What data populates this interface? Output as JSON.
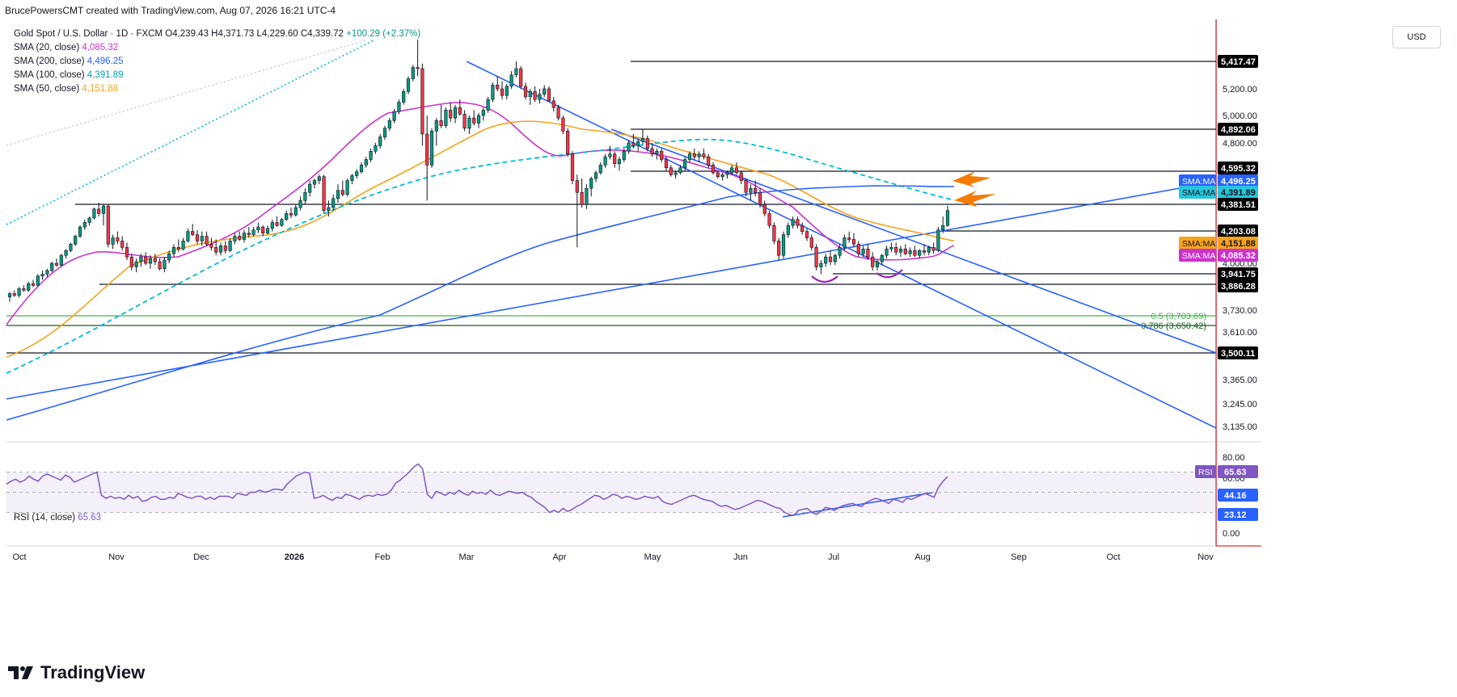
{
  "header": "BrucePowersCMT created with TradingView.com, Aug 07, 2026 16:21 UTC-4",
  "symbol": {
    "title": "Gold Spot / U.S. Dollar · 1D · FXCM",
    "open": "O4,239.43",
    "high": "H4,371.73",
    "low": "L4,229.60",
    "close": "C4,339.72",
    "change": "+100.29 (+2.37%)"
  },
  "indicators": [
    {
      "label": "SMA (20, close)",
      "value": "4,085.32",
      "color": "#cc33cc"
    },
    {
      "label": "SMA (200, close)",
      "value": "4,496.25",
      "color": "#2962ff"
    },
    {
      "label": "SMA (100, close)",
      "value": "4,391.89",
      "color": "#00bcd4"
    },
    {
      "label": "SMA (50, close)",
      "value": "4,151.88",
      "color": "#f7a21b"
    }
  ],
  "rsi_legend": {
    "label": "RSI (14, close)",
    "value": "65.63",
    "color": "#7e57c2"
  },
  "currency_button": "USD",
  "brand": "TradingView",
  "chart_data": {
    "type": "candlestick",
    "x_labels": [
      "Oct",
      "Nov",
      "Dec",
      "2026",
      "Feb",
      "Mar",
      "Apr",
      "May",
      "Jun",
      "Jul",
      "Aug",
      "Sep",
      "Oct",
      "Nov"
    ],
    "price_axis_ticks": [
      "5,200.00",
      "5,000.00",
      "4,800.00",
      "4,000.00",
      "3,730.00",
      "3,610.00",
      "3,365.00",
      "3,245.00",
      "3,135.00"
    ],
    "price_axis_labels": [
      {
        "text": "5,417.47",
        "bg": "#000000",
        "fg": "#ffffff"
      },
      {
        "text": "4,892.06",
        "bg": "#000000",
        "fg": "#ffffff"
      },
      {
        "text": "4,595.32",
        "bg": "#000000",
        "fg": "#ffffff"
      },
      {
        "text": "4,496.25",
        "tag": "SMA:MA",
        "bg": "#2962ff",
        "fg": "#ffffff"
      },
      {
        "text": "4,391.89",
        "tag": "SMA:MA",
        "bg": "#26c6da",
        "fg": "#131722"
      },
      {
        "text": "4,381.51",
        "bg": "#000000",
        "fg": "#ffffff"
      },
      {
        "text": "4,203.08",
        "bg": "#000000",
        "fg": "#ffffff"
      },
      {
        "text": "4,151.88",
        "tag": "SMA:MA",
        "bg": "#f7a21b",
        "fg": "#131722"
      },
      {
        "text": "4,085.32",
        "tag": "SMA:MA",
        "bg": "#cc33cc",
        "fg": "#ffffff"
      },
      {
        "text": "3,941.75",
        "bg": "#000000",
        "fg": "#ffffff"
      },
      {
        "text": "3,886.28",
        "bg": "#000000",
        "fg": "#ffffff"
      },
      {
        "text": "3,500.11",
        "bg": "#000000",
        "fg": "#ffffff"
      }
    ],
    "horizontal_levels": [
      5417.47,
      4892.06,
      4595.32,
      4381.51,
      4203.08,
      3941.75,
      3886.28,
      3500.11
    ],
    "fib_levels": [
      {
        "label": "0.5 (3,703.69)",
        "value": 3703.69,
        "color": "#4caf50"
      },
      {
        "label": "0.786 (3,650.42)",
        "value": 3650.42,
        "color": "#1b5e20"
      }
    ],
    "candles": [
      [
        3810,
        3840,
        3780,
        3830
      ],
      [
        3830,
        3850,
        3810,
        3820
      ],
      [
        3820,
        3870,
        3805,
        3860
      ],
      [
        3860,
        3880,
        3840,
        3850
      ],
      [
        3850,
        3900,
        3840,
        3890
      ],
      [
        3890,
        3910,
        3870,
        3880
      ],
      [
        3880,
        3940,
        3875,
        3930
      ],
      [
        3930,
        3960,
        3910,
        3940
      ],
      [
        3940,
        3970,
        3925,
        3960
      ],
      [
        3960,
        4010,
        3950,
        4000
      ],
      [
        4000,
        4030,
        3980,
        3990
      ],
      [
        3990,
        4060,
        3985,
        4050
      ],
      [
        4050,
        4090,
        4030,
        4080
      ],
      [
        4080,
        4130,
        4070,
        4120
      ],
      [
        4120,
        4180,
        4110,
        4170
      ],
      [
        4170,
        4240,
        4160,
        4230
      ],
      [
        4230,
        4280,
        4210,
        4260
      ],
      [
        4260,
        4300,
        4240,
        4290
      ],
      [
        4290,
        4360,
        4280,
        4350
      ],
      [
        4350,
        4390,
        4300,
        4320
      ],
      [
        4320,
        4380,
        4240,
        4370
      ],
      [
        4370,
        4380,
        4100,
        4120
      ],
      [
        4120,
        4180,
        4090,
        4160
      ],
      [
        4160,
        4200,
        4120,
        4140
      ],
      [
        4140,
        4170,
        4080,
        4100
      ],
      [
        4100,
        4130,
        4020,
        4040
      ],
      [
        4040,
        4060,
        3960,
        3980
      ],
      [
        3980,
        4030,
        3950,
        4010
      ],
      [
        4010,
        4060,
        3980,
        4040
      ],
      [
        4040,
        4070,
        3990,
        4000
      ],
      [
        4000,
        4050,
        3970,
        4030
      ],
      [
        4030,
        4060,
        3990,
        4010
      ],
      [
        4010,
        4030,
        3960,
        3970
      ],
      [
        3970,
        4040,
        3950,
        4020
      ],
      [
        4020,
        4080,
        4000,
        4060
      ],
      [
        4060,
        4120,
        4040,
        4100
      ],
      [
        4100,
        4150,
        4070,
        4090
      ],
      [
        4090,
        4160,
        4080,
        4140
      ],
      [
        4140,
        4220,
        4130,
        4200
      ],
      [
        4200,
        4250,
        4170,
        4180
      ],
      [
        4180,
        4210,
        4120,
        4140
      ],
      [
        4140,
        4200,
        4110,
        4170
      ],
      [
        4170,
        4200,
        4110,
        4120
      ],
      [
        4120,
        4160,
        4080,
        4100
      ],
      [
        4100,
        4150,
        4050,
        4070
      ],
      [
        4070,
        4130,
        4050,
        4110
      ],
      [
        4110,
        4140,
        4060,
        4080
      ],
      [
        4080,
        4160,
        4070,
        4140
      ],
      [
        4140,
        4190,
        4120,
        4170
      ],
      [
        4170,
        4200,
        4140,
        4150
      ],
      [
        4150,
        4210,
        4130,
        4190
      ],
      [
        4190,
        4230,
        4160,
        4180
      ],
      [
        4180,
        4230,
        4170,
        4210
      ],
      [
        4210,
        4260,
        4190,
        4230
      ],
      [
        4230,
        4240,
        4170,
        4190
      ],
      [
        4190,
        4240,
        4180,
        4220
      ],
      [
        4220,
        4280,
        4200,
        4260
      ],
      [
        4260,
        4300,
        4230,
        4240
      ],
      [
        4240,
        4290,
        4230,
        4280
      ],
      [
        4280,
        4340,
        4270,
        4320
      ],
      [
        4320,
        4360,
        4290,
        4310
      ],
      [
        4310,
        4380,
        4300,
        4360
      ],
      [
        4360,
        4420,
        4340,
        4400
      ],
      [
        4400,
        4460,
        4380,
        4440
      ],
      [
        4440,
        4500,
        4420,
        4480
      ],
      [
        4480,
        4520,
        4460,
        4500
      ],
      [
        4500,
        4560,
        4480,
        4540
      ],
      [
        4540,
        4560,
        4320,
        4340
      ],
      [
        4340,
        4400,
        4300,
        4360
      ],
      [
        4360,
        4430,
        4340,
        4410
      ],
      [
        4410,
        4480,
        4390,
        4450
      ],
      [
        4450,
        4500,
        4420,
        4430
      ],
      [
        4430,
        4520,
        4420,
        4500
      ],
      [
        4500,
        4570,
        4480,
        4550
      ],
      [
        4550,
        4610,
        4520,
        4590
      ],
      [
        4590,
        4660,
        4570,
        4640
      ],
      [
        4640,
        4700,
        4620,
        4680
      ],
      [
        4680,
        4760,
        4660,
        4740
      ],
      [
        4740,
        4800,
        4720,
        4780
      ],
      [
        4780,
        4860,
        4760,
        4840
      ],
      [
        4840,
        4920,
        4820,
        4900
      ],
      [
        4900,
        4980,
        4880,
        4960
      ],
      [
        4960,
        5050,
        4940,
        5030
      ],
      [
        5030,
        5120,
        5010,
        5100
      ],
      [
        5100,
        5200,
        5080,
        5180
      ],
      [
        5180,
        5300,
        5160,
        5280
      ],
      [
        5280,
        5390,
        5260,
        5370
      ],
      [
        5370,
        5590,
        5300,
        5360
      ],
      [
        5360,
        5400,
        4780,
        4860
      ],
      [
        4860,
        5000,
        4400,
        4640
      ],
      [
        4640,
        4900,
        4620,
        4880
      ],
      [
        4880,
        4980,
        4780,
        4960
      ],
      [
        4960,
        5080,
        4900,
        4920
      ],
      [
        4920,
        5060,
        4900,
        5040
      ],
      [
        5040,
        5100,
        4950,
        4980
      ],
      [
        4980,
        5080,
        4940,
        5060
      ],
      [
        5060,
        5120,
        5000,
        5010
      ],
      [
        5010,
        5040,
        4880,
        4900
      ],
      [
        4900,
        5000,
        4860,
        4980
      ],
      [
        4980,
        5040,
        4920,
        4940
      ],
      [
        4940,
        5020,
        4900,
        5000
      ],
      [
        5000,
        5060,
        4960,
        5040
      ],
      [
        5040,
        5140,
        5020,
        5120
      ],
      [
        5120,
        5250,
        5100,
        5230
      ],
      [
        5230,
        5300,
        5180,
        5200
      ],
      [
        5200,
        5260,
        5120,
        5150
      ],
      [
        5150,
        5240,
        5120,
        5220
      ],
      [
        5220,
        5340,
        5200,
        5310
      ],
      [
        5310,
        5417,
        5290,
        5360
      ],
      [
        5360,
        5380,
        5200,
        5220
      ],
      [
        5220,
        5250,
        5120,
        5140
      ],
      [
        5140,
        5200,
        5080,
        5180
      ],
      [
        5180,
        5220,
        5100,
        5120
      ],
      [
        5120,
        5200,
        5090,
        5160
      ],
      [
        5160,
        5230,
        5140,
        5200
      ],
      [
        5200,
        5220,
        5100,
        5110
      ],
      [
        5110,
        5140,
        5030,
        5060
      ],
      [
        5060,
        5080,
        4960,
        4980
      ],
      [
        4980,
        5000,
        4860,
        4880
      ],
      [
        4880,
        4900,
        4700,
        4720
      ],
      [
        4720,
        4740,
        4480,
        4500
      ],
      [
        4500,
        4560,
        4100,
        4440
      ],
      [
        4440,
        4520,
        4360,
        4380
      ],
      [
        4380,
        4480,
        4350,
        4460
      ],
      [
        4460,
        4540,
        4420,
        4520
      ],
      [
        4520,
        4600,
        4490,
        4580
      ],
      [
        4580,
        4660,
        4560,
        4640
      ],
      [
        4640,
        4720,
        4620,
        4700
      ],
      [
        4700,
        4780,
        4680,
        4720
      ],
      [
        4720,
        4740,
        4620,
        4650
      ],
      [
        4650,
        4700,
        4600,
        4680
      ],
      [
        4680,
        4760,
        4660,
        4740
      ],
      [
        4740,
        4820,
        4720,
        4800
      ],
      [
        4800,
        4860,
        4760,
        4780
      ],
      [
        4780,
        4830,
        4740,
        4810
      ],
      [
        4810,
        4890,
        4790,
        4830
      ],
      [
        4830,
        4850,
        4740,
        4760
      ],
      [
        4760,
        4800,
        4700,
        4720
      ],
      [
        4720,
        4760,
        4680,
        4740
      ],
      [
        4740,
        4760,
        4660,
        4680
      ],
      [
        4680,
        4700,
        4600,
        4620
      ],
      [
        4620,
        4640,
        4540,
        4560
      ],
      [
        4560,
        4600,
        4520,
        4580
      ],
      [
        4580,
        4640,
        4560,
        4620
      ],
      [
        4620,
        4700,
        4600,
        4680
      ],
      [
        4680,
        4740,
        4660,
        4720
      ],
      [
        4720,
        4760,
        4680,
        4700
      ],
      [
        4700,
        4740,
        4660,
        4720
      ],
      [
        4720,
        4760,
        4680,
        4700
      ],
      [
        4700,
        4720,
        4620,
        4640
      ],
      [
        4640,
        4660,
        4560,
        4580
      ],
      [
        4580,
        4600,
        4520,
        4540
      ],
      [
        4540,
        4580,
        4500,
        4560
      ],
      [
        4560,
        4600,
        4520,
        4580
      ],
      [
        4580,
        4640,
        4560,
        4620
      ],
      [
        4620,
        4660,
        4560,
        4580
      ],
      [
        4580,
        4600,
        4480,
        4500
      ],
      [
        4500,
        4520,
        4420,
        4440
      ],
      [
        4440,
        4480,
        4400,
        4460
      ],
      [
        4460,
        4500,
        4420,
        4440
      ],
      [
        4440,
        4460,
        4360,
        4380
      ],
      [
        4380,
        4400,
        4300,
        4320
      ],
      [
        4320,
        4340,
        4220,
        4240
      ],
      [
        4240,
        4260,
        4120,
        4140
      ],
      [
        4140,
        4160,
        4020,
        4050
      ],
      [
        4050,
        4200,
        4030,
        4180
      ],
      [
        4180,
        4260,
        4160,
        4240
      ],
      [
        4240,
        4300,
        4220,
        4280
      ],
      [
        4280,
        4300,
        4220,
        4240
      ],
      [
        4240,
        4260,
        4180,
        4200
      ],
      [
        4200,
        4220,
        4140,
        4160
      ],
      [
        4160,
        4180,
        4080,
        4100
      ],
      [
        4100,
        4120,
        3960,
        3980
      ],
      [
        3980,
        4020,
        3940,
        4000
      ],
      [
        4000,
        4060,
        3980,
        4040
      ],
      [
        4040,
        4080,
        3990,
        4010
      ],
      [
        4010,
        4060,
        3990,
        4050
      ],
      [
        4050,
        4120,
        4030,
        4100
      ],
      [
        4100,
        4180,
        4080,
        4160
      ],
      [
        4160,
        4200,
        4130,
        4150
      ],
      [
        4150,
        4190,
        4100,
        4120
      ],
      [
        4120,
        4140,
        4040,
        4060
      ],
      [
        4060,
        4110,
        4040,
        4090
      ],
      [
        4090,
        4120,
        4020,
        4040
      ],
      [
        4040,
        4070,
        3960,
        3980
      ],
      [
        3980,
        4020,
        3960,
        4010
      ],
      [
        4010,
        4060,
        3990,
        4050
      ],
      [
        4050,
        4110,
        4030,
        4090
      ],
      [
        4090,
        4130,
        4070,
        4100
      ],
      [
        4100,
        4130,
        4050,
        4070
      ],
      [
        4070,
        4110,
        4040,
        4090
      ],
      [
        4090,
        4120,
        4050,
        4060
      ],
      [
        4060,
        4100,
        4040,
        4080
      ],
      [
        4080,
        4110,
        4040,
        4050
      ],
      [
        4050,
        4090,
        4030,
        4080
      ],
      [
        4080,
        4120,
        4050,
        4070
      ],
      [
        4070,
        4110,
        4050,
        4100
      ],
      [
        4100,
        4130,
        4060,
        4080
      ],
      [
        4080,
        4230,
        4070,
        4210
      ],
      [
        4210,
        4300,
        4190,
        4240
      ],
      [
        4240,
        4372,
        4230,
        4340
      ]
    ],
    "sma_values": {
      "sma20": {
        "start": 3700,
        "end": 4085.32
      },
      "sma50": {
        "start": 3560,
        "end": 4151.88
      },
      "sma100": {
        "start": 3380,
        "end": 4391.89
      },
      "sma200": {
        "start": 3190,
        "end": 4496.25
      }
    },
    "rsi": {
      "ticks": [
        "80.00",
        "60.00",
        "0.00"
      ],
      "labels": [
        {
          "text": "65.63",
          "tag": "RSI",
          "bg": "#7e57c2"
        },
        {
          "text": "44.16",
          "bg": "#2962ff"
        },
        {
          "text": "23.12",
          "bg": "#2962ff"
        }
      ],
      "band": [
        30,
        70
      ]
    }
  }
}
